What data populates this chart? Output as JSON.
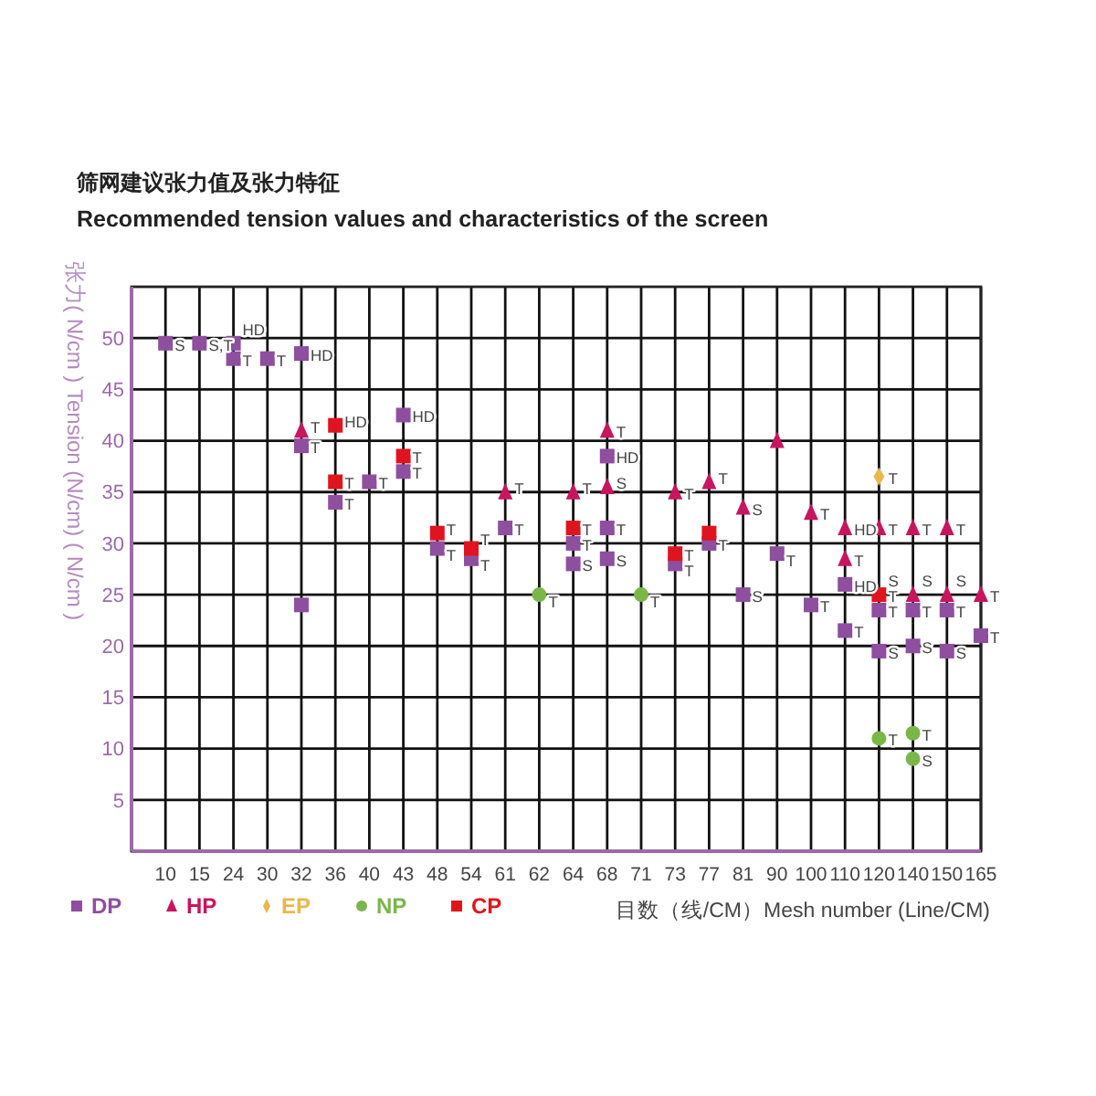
{
  "chart_data": {
    "type": "scatter",
    "title": "筛网建议张力值及张力特征",
    "subtitle": "Recommended tension values and characteristics of the screen",
    "xlabel": "目数（线/CM）Mesh number (Line/CM)",
    "ylabel": "张力( N/cm ) Tension (N/cm) ( N/cm )",
    "categories": [
      "10",
      "15",
      "24",
      "30",
      "32",
      "36",
      "40",
      "43",
      "48",
      "54",
      "61",
      "62",
      "64",
      "68",
      "71",
      "73",
      "77",
      "81",
      "90",
      "100",
      "110",
      "120",
      "140",
      "150",
      "165"
    ],
    "ylim": [
      0,
      55
    ],
    "yticks": [
      5,
      10,
      15,
      20,
      25,
      30,
      35,
      40,
      45,
      50
    ],
    "grid": true,
    "legend": "bottom left",
    "series": [
      {
        "name": "DP",
        "color": "#8e4f9e",
        "marker": "square",
        "x": [
          "10",
          "15",
          "24",
          "24",
          "30",
          "32",
          "32",
          "32",
          "36",
          "40",
          "43",
          "43",
          "48",
          "54",
          "61",
          "64",
          "64",
          "68",
          "68",
          "68",
          "73",
          "77",
          "81",
          "90",
          "100",
          "110",
          "110",
          "120",
          "120",
          "140",
          "140",
          "150",
          "150",
          "165"
        ],
        "values": [
          49.5,
          49.5,
          49.5,
          48,
          48,
          48.5,
          39.5,
          24,
          34,
          36,
          42.5,
          37,
          29.5,
          28.5,
          31.5,
          30,
          28,
          38.5,
          31.5,
          28.5,
          28,
          30,
          25,
          29,
          24,
          26,
          21.5,
          23.5,
          19.5,
          23.5,
          20,
          23.5,
          19.5,
          21
        ]
      },
      {
        "name": "HP",
        "color": "#c8155f",
        "marker": "triangle",
        "x": [
          "32",
          "61",
          "64",
          "68",
          "68",
          "73",
          "77",
          "81",
          "90",
          "100",
          "110",
          "110",
          "120",
          "140",
          "140",
          "150",
          "150",
          "165"
        ],
        "values": [
          41,
          35,
          35,
          41,
          35.5,
          35,
          36,
          33.5,
          40,
          33,
          31.5,
          28.5,
          31.5,
          31.5,
          25,
          31.5,
          25,
          25
        ]
      },
      {
        "name": "EP",
        "color": "#e8b84a",
        "marker": "diamond",
        "x": [
          "120"
        ],
        "values": [
          36.5
        ]
      },
      {
        "name": "NP",
        "color": "#7ab648",
        "marker": "circle",
        "x": [
          "62",
          "71",
          "120",
          "140",
          "140"
        ],
        "values": [
          25,
          25,
          11,
          11.5,
          9
        ]
      },
      {
        "name": "CP",
        "color": "#e0141e",
        "marker": "square",
        "x": [
          "36",
          "36",
          "43",
          "48",
          "54",
          "64",
          "73",
          "77",
          "120"
        ],
        "values": [
          41.5,
          36,
          38.5,
          31,
          29.5,
          31.5,
          29,
          31,
          25
        ]
      }
    ],
    "annotations": [
      {
        "text": "S",
        "x": "10",
        "y": 49.5
      },
      {
        "text": "S,T",
        "x": "15",
        "y": 49.5
      },
      {
        "text": "HD",
        "x": "24",
        "y": 51
      },
      {
        "text": "T",
        "x": "24",
        "y": 48
      },
      {
        "text": "T",
        "x": "30",
        "y": 48
      },
      {
        "text": "HD",
        "x": "32",
        "y": 48.5
      },
      {
        "text": "T",
        "x": "32",
        "y": 41.5
      },
      {
        "text": "T",
        "x": "32",
        "y": 39.5
      },
      {
        "text": "HD",
        "x": "36",
        "y": 42
      },
      {
        "text": "T",
        "x": "36",
        "y": 36
      },
      {
        "text": "T",
        "x": "36",
        "y": 34
      },
      {
        "text": "T",
        "x": "40",
        "y": 36
      },
      {
        "text": "HD",
        "x": "43",
        "y": 42.5
      },
      {
        "text": "T",
        "x": "43",
        "y": 38.5
      },
      {
        "text": "T",
        "x": "43",
        "y": 37
      },
      {
        "text": "T",
        "x": "48",
        "y": 31.5
      },
      {
        "text": "T",
        "x": "48",
        "y": 29
      },
      {
        "text": "T",
        "x": "54",
        "y": 30.5
      },
      {
        "text": "T",
        "x": "54",
        "y": 28
      },
      {
        "text": "T",
        "x": "61",
        "y": 35.5
      },
      {
        "text": "T",
        "x": "61",
        "y": 31.5
      },
      {
        "text": "T",
        "x": "62",
        "y": 24.5
      },
      {
        "text": "T",
        "x": "64",
        "y": 35.5
      },
      {
        "text": "T",
        "x": "64",
        "y": 31.5
      },
      {
        "text": "T",
        "x": "64",
        "y": 30
      },
      {
        "text": "S",
        "x": "64",
        "y": 28
      },
      {
        "text": "T",
        "x": "68",
        "y": 41
      },
      {
        "text": "HD",
        "x": "68",
        "y": 38.5
      },
      {
        "text": "S",
        "x": "68",
        "y": 36
      },
      {
        "text": "T",
        "x": "68",
        "y": 31.5
      },
      {
        "text": "S",
        "x": "68",
        "y": 28.5
      },
      {
        "text": "T",
        "x": "71",
        "y": 24.5
      },
      {
        "text": "T",
        "x": "73",
        "y": 35
      },
      {
        "text": "T",
        "x": "73",
        "y": 29
      },
      {
        "text": "T",
        "x": "73",
        "y": 27.5
      },
      {
        "text": "T",
        "x": "77",
        "y": 36.5
      },
      {
        "text": "T",
        "x": "77",
        "y": 30
      },
      {
        "text": "S",
        "x": "81",
        "y": 33.5
      },
      {
        "text": "S",
        "x": "81",
        "y": 25
      },
      {
        "text": "T",
        "x": "90",
        "y": 28.5
      },
      {
        "text": "T",
        "x": "100",
        "y": 33
      },
      {
        "text": "T",
        "x": "100",
        "y": 24
      },
      {
        "text": "HD",
        "x": "110",
        "y": 31.5
      },
      {
        "text": "T",
        "x": "110",
        "y": 28.5
      },
      {
        "text": "HD",
        "x": "110",
        "y": 26
      },
      {
        "text": "T",
        "x": "110",
        "y": 21.5
      },
      {
        "text": "T",
        "x": "120",
        "y": 36.5
      },
      {
        "text": "T",
        "x": "120",
        "y": 31.5
      },
      {
        "text": "S",
        "x": "120",
        "y": 26.5
      },
      {
        "text": "T",
        "x": "120",
        "y": 25
      },
      {
        "text": "T",
        "x": "120",
        "y": 23.5
      },
      {
        "text": "S",
        "x": "120",
        "y": 19.5
      },
      {
        "text": "T",
        "x": "120",
        "y": 11
      },
      {
        "text": "S",
        "x": "140",
        "y": 26.5
      },
      {
        "text": "T",
        "x": "140",
        "y": 31.5
      },
      {
        "text": "T",
        "x": "140",
        "y": 23.5
      },
      {
        "text": "S",
        "x": "140",
        "y": 20
      },
      {
        "text": "T",
        "x": "140",
        "y": 11.5
      },
      {
        "text": "S",
        "x": "140",
        "y": 9
      },
      {
        "text": "S",
        "x": "150",
        "y": 26.5
      },
      {
        "text": "T",
        "x": "150",
        "y": 31.5
      },
      {
        "text": "T",
        "x": "150",
        "y": 23.5
      },
      {
        "text": "S",
        "x": "150",
        "y": 19.5
      },
      {
        "text": "T",
        "x": "165",
        "y": 25
      },
      {
        "text": "T",
        "x": "165",
        "y": 21
      }
    ]
  }
}
